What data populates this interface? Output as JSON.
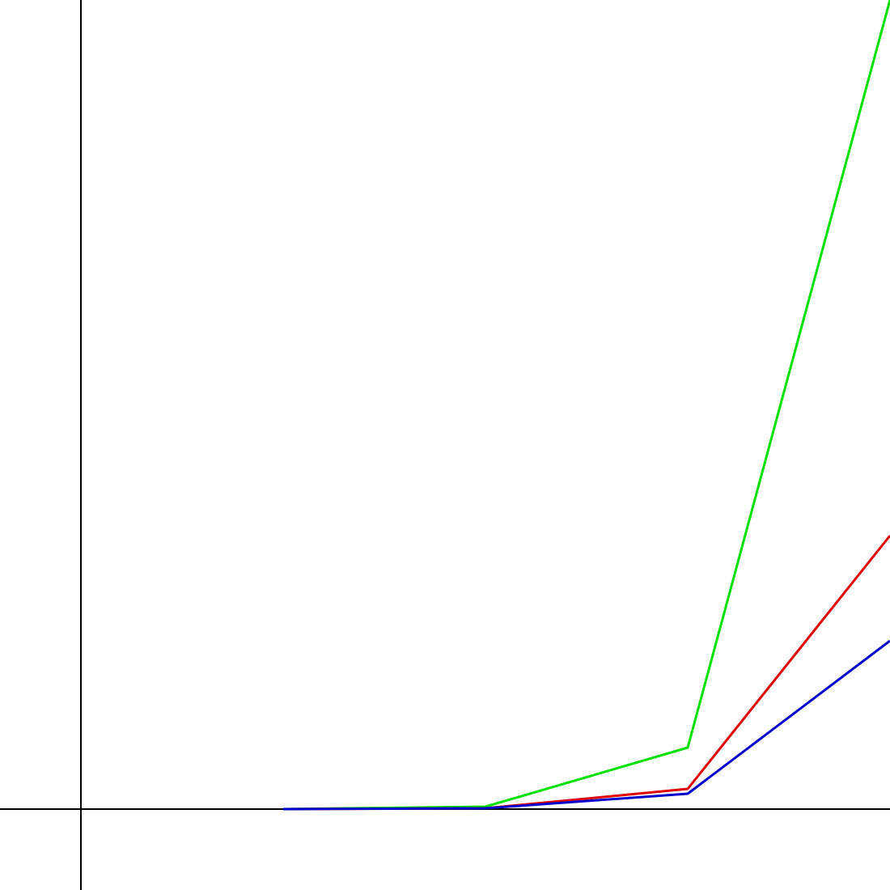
{
  "chart_data": {
    "type": "line",
    "title": "",
    "xlabel": "",
    "ylabel": "",
    "grid": false,
    "legend": "none",
    "x": [
      1,
      2,
      3,
      4
    ],
    "xlim": [
      -0.4,
      4
    ],
    "ylim": [
      -10,
      100
    ],
    "series": [
      {
        "color": "#00e000",
        "values": [
          0.0,
          0.3,
          7.6,
          100
        ]
      },
      {
        "color": "#e00000",
        "values": [
          0.0,
          0.1,
          2.5,
          33.8
        ]
      },
      {
        "color": "#0000cc",
        "values": [
          0.0,
          0.1,
          1.9,
          20.8
        ]
      }
    ],
    "axes": {
      "color": "#000000"
    }
  }
}
